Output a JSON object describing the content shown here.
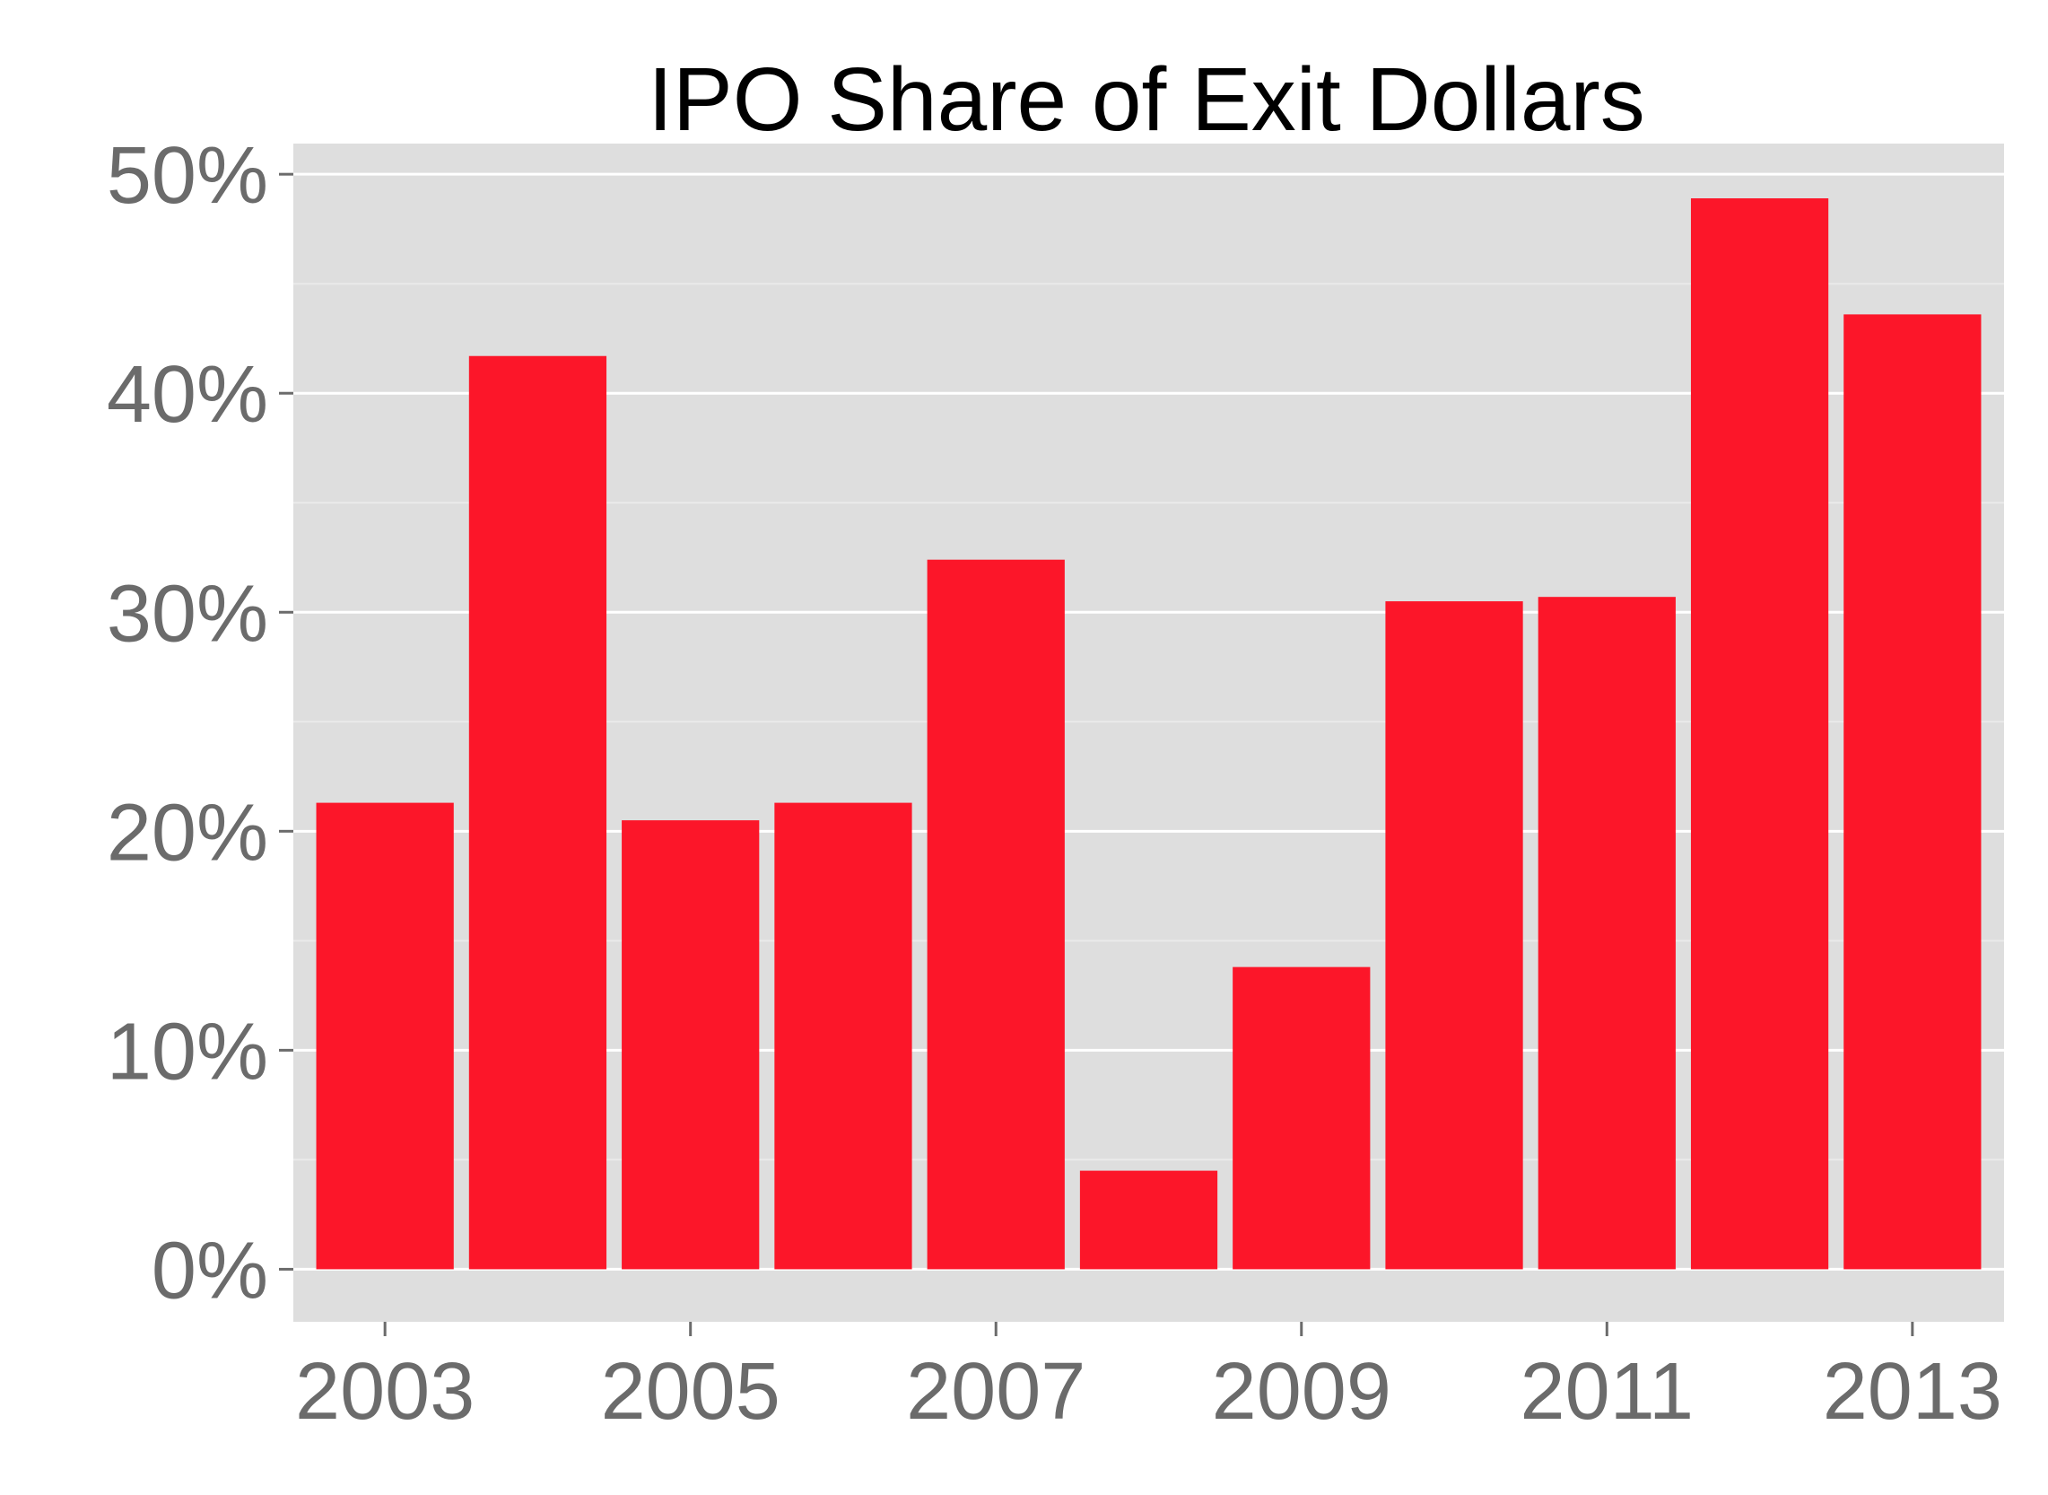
{
  "chart_data": {
    "type": "bar",
    "title": "IPO Share of Exit Dollars",
    "xlabel": "",
    "ylabel": "",
    "categories": [
      "2003",
      "2004",
      "2005",
      "2006",
      "2007",
      "2008",
      "2009",
      "2010",
      "2011",
      "2012",
      "2013"
    ],
    "values": [
      21.3,
      41.7,
      20.5,
      21.3,
      32.4,
      4.5,
      13.8,
      30.5,
      30.7,
      48.9,
      43.6
    ],
    "x_tick_labels": [
      "2003",
      "2005",
      "2007",
      "2009",
      "2011",
      "2013"
    ],
    "y_tick_labels": [
      "0%",
      "10%",
      "20%",
      "30%",
      "40%",
      "50%"
    ],
    "y_ticks": [
      0,
      10,
      20,
      30,
      40,
      50
    ],
    "ylim": [
      -2.4,
      51.4
    ],
    "grid": true,
    "legend": "none",
    "colors": {
      "bar": "#fc1629",
      "panel": "#dedede",
      "grid_major": "#ffffff",
      "grid_minor": "#eaeaea",
      "tick_text": "#6b6b6b",
      "tick_mark": "#6b6b6b"
    }
  }
}
